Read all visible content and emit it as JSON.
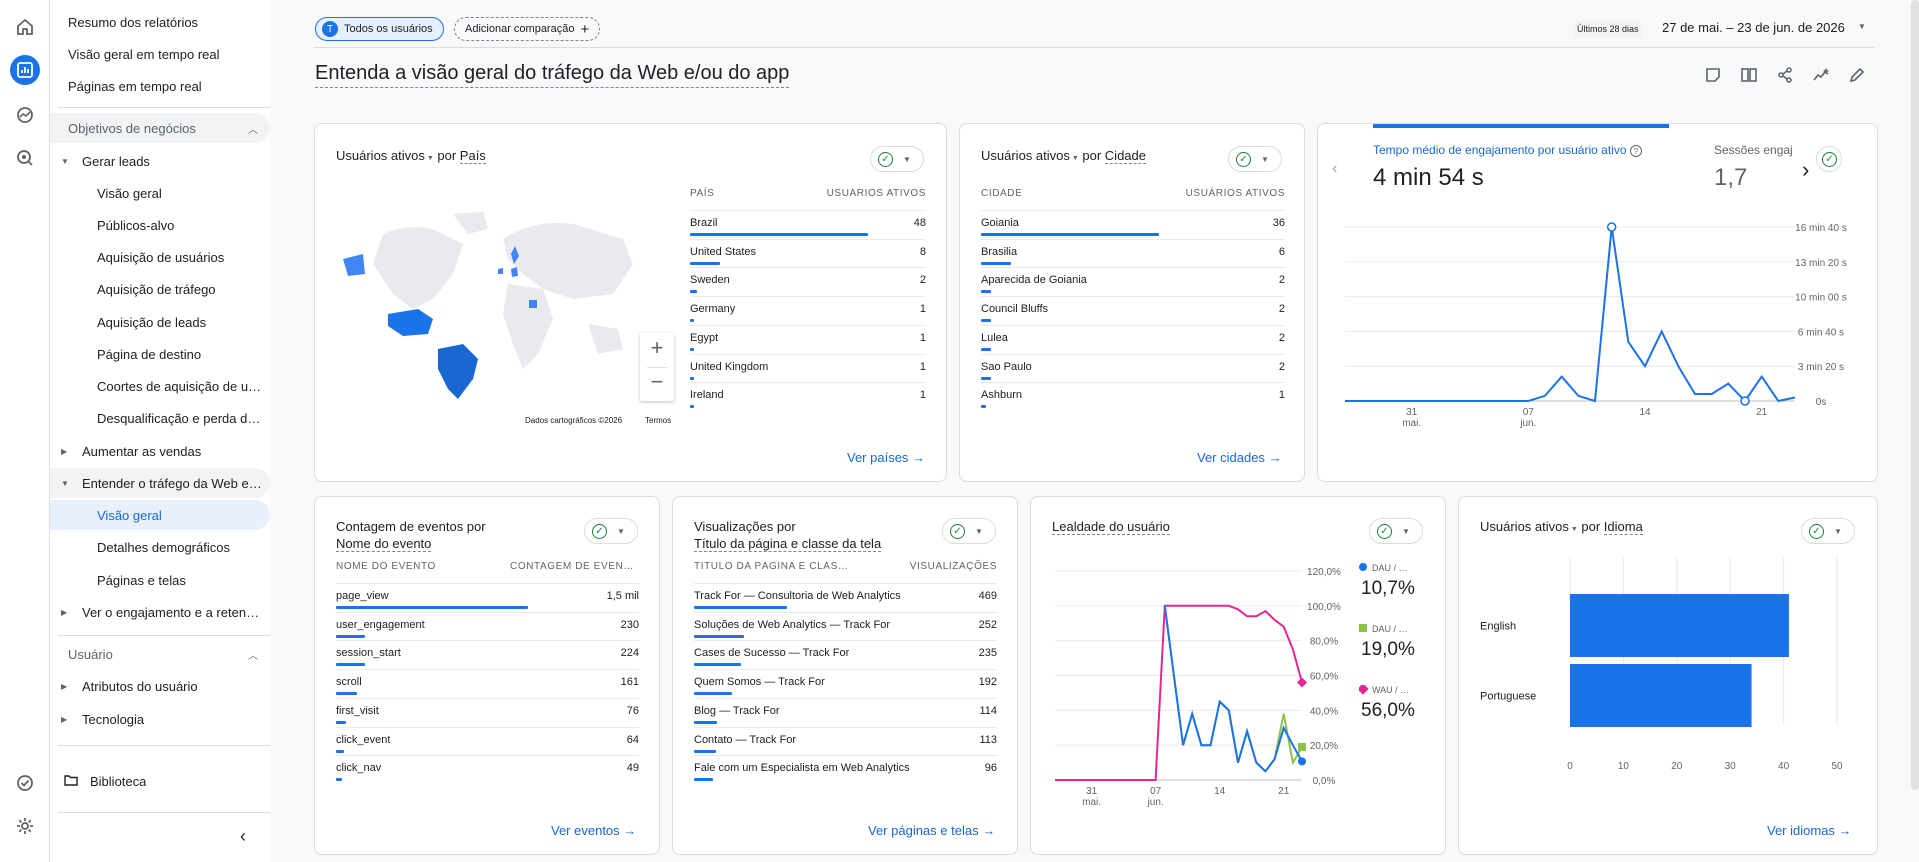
{
  "nav": {
    "top_items": [
      "Resumo dos relatórios",
      "Visão geral em tempo real",
      "Páginas em tempo real"
    ],
    "section1": "Objetivos de negócios",
    "gerar_leads": "Gerar leads",
    "gerar_leads_items": [
      "Visão geral",
      "Públicos-alvo",
      "Aquisição de usuários",
      "Aquisição de tráfego",
      "Aquisição de leads",
      "Página de destino",
      "Coortes de aquisição de usuários",
      "Desqualificação e perda de leads"
    ],
    "aumentar": "Aumentar as vendas",
    "entender": "Entender o tráfego da Web e/ou do app",
    "entender_items": [
      "Visão geral",
      "Detalhes demográficos",
      "Páginas e telas"
    ],
    "engajamento": "Ver o engajamento e a retenção",
    "section2": "Usuário",
    "usuario_items": [
      "Atributos do usuário",
      "Tecnologia"
    ],
    "biblioteca": "Biblioteca"
  },
  "header": {
    "segment_avatar": "T",
    "segment": "Todos os usuários",
    "add_comparison": "Adicionar comparação",
    "range_label": "Últimos 28 dias",
    "range": "27 de mai. – 23 de jun. de 2026",
    "page_title": "Entenda a visão geral do tráfego da Web e/ou do app"
  },
  "country_card": {
    "title_metric": "Usuários ativos",
    "title_by": "por",
    "title_dim": "País",
    "col1": "PAÍS",
    "col2": "USUÁRIOS ATIVOS",
    "rows": [
      {
        "name": "Brazil",
        "value": "48",
        "frac": 1.0
      },
      {
        "name": "United States",
        "value": "8",
        "frac": 0.167
      },
      {
        "name": "Sweden",
        "value": "2",
        "frac": 0.042
      },
      {
        "name": "Germany",
        "value": "1",
        "frac": 0.021
      },
      {
        "name": "Egypt",
        "value": "1",
        "frac": 0.021
      },
      {
        "name": "United Kingdom",
        "value": "1",
        "frac": 0.021
      },
      {
        "name": "Ireland",
        "value": "1",
        "frac": 0.021
      }
    ],
    "zoom_in": "+",
    "zoom_out": "−",
    "map_credit": "Dados cartográficos ©2026",
    "terms": "Termos",
    "footer": "Ver países"
  },
  "city_card": {
    "title_metric": "Usuários ativos",
    "title_by": "por",
    "title_dim": "Cidade",
    "col1": "CIDADE",
    "col2": "USUÁRIOS ATIVOS",
    "rows": [
      {
        "name": "Goiania",
        "value": "36",
        "frac": 1.0
      },
      {
        "name": "Brasilia",
        "value": "6",
        "frac": 0.167
      },
      {
        "name": "Aparecida de Goiania",
        "value": "2",
        "frac": 0.056
      },
      {
        "name": "Council Bluffs",
        "value": "2",
        "frac": 0.056
      },
      {
        "name": "Lulea",
        "value": "2",
        "frac": 0.056
      },
      {
        "name": "Sao Paulo",
        "value": "2",
        "frac": 0.056
      },
      {
        "name": "Ashburn",
        "value": "1",
        "frac": 0.028
      }
    ],
    "footer": "Ver cidades"
  },
  "engagement_card": {
    "metric1_label": "Tempo médio de engajamento por usuário ativo",
    "metric1_value": "4 min 54 s",
    "metric2_label": "Sessões engajadas por usuário ativo",
    "metric2_value": "1,7",
    "yticks": [
      "16 min 40 s",
      "13 min 20 s",
      "10 min 00 s",
      "6 min 40 s",
      "3 min 20 s",
      "0s"
    ],
    "xticks": [
      {
        "day": "31",
        "month": "mai."
      },
      {
        "day": "07",
        "month": "jun."
      },
      {
        "day": "14",
        "month": ""
      },
      {
        "day": "21",
        "month": ""
      }
    ]
  },
  "events_card": {
    "title_line1": "Contagem de eventos por",
    "title_line2": "Nome do evento",
    "col1": "NOME DO EVENTO",
    "col2": "CONTAGEM DE EVENTOS",
    "rows": [
      {
        "name": "page_view",
        "value": "1,5 mil",
        "frac": 1.0
      },
      {
        "name": "user_engagement",
        "value": "230",
        "frac": 0.153
      },
      {
        "name": "session_start",
        "value": "224",
        "frac": 0.149
      },
      {
        "name": "scroll",
        "value": "161",
        "frac": 0.107
      },
      {
        "name": "first_visit",
        "value": "76",
        "frac": 0.05
      },
      {
        "name": "click_event",
        "value": "64",
        "frac": 0.043
      },
      {
        "name": "click_nav",
        "value": "49",
        "frac": 0.033
      }
    ],
    "footer": "Ver eventos"
  },
  "views_card": {
    "title_line1": "Visualizações por",
    "title_line2": "Título da página e classe da tela",
    "col1": "TÍTULO DA PÁGINA E CLASSE DA TELA",
    "col2": "VISUALIZAÇÕES",
    "rows": [
      {
        "name": "Track For — Consultoria de Web Analytics",
        "value": "469",
        "frac": 1.0
      },
      {
        "name": "Soluções de Web Analytics — Track For",
        "value": "252",
        "frac": 0.537
      },
      {
        "name": "Cases de Sucesso — Track For",
        "value": "235",
        "frac": 0.501
      },
      {
        "name": "Quem Somos — Track For",
        "value": "192",
        "frac": 0.409
      },
      {
        "name": "Blog — Track For",
        "value": "114",
        "frac": 0.243
      },
      {
        "name": "Contato — Track For",
        "value": "113",
        "frac": 0.241
      },
      {
        "name": "Fale com um Especialista em Web Analytics",
        "value": "96",
        "frac": 0.205
      }
    ],
    "footer": "Ver páginas e telas"
  },
  "loyalty_card": {
    "title": "Lealdade do usuário",
    "yticks": [
      "120,0%",
      "100,0%",
      "80,0%",
      "60,0%",
      "40,0%",
      "20,0%",
      "0,0%"
    ],
    "xticks": [
      {
        "day": "31",
        "month": "mai."
      },
      {
        "day": "07",
        "month": "jun."
      },
      {
        "day": "14",
        "month": ""
      },
      {
        "day": "21",
        "month": ""
      }
    ],
    "legend": [
      {
        "label": "DAU / MAU",
        "value": "10,7%",
        "color": "#1a73e8"
      },
      {
        "label": "DAU / WAU",
        "value": "19,0%",
        "color": "#8bc34a"
      },
      {
        "label": "WAU / MAU",
        "value": "56,0%",
        "color": "#e52592"
      }
    ]
  },
  "language_card": {
    "title_metric": "Usuários ativos",
    "title_by": "por",
    "title_dim": "Idioma",
    "footer": "Ver idiomas"
  },
  "chart_data": [
    {
      "type": "line",
      "title": "Tempo médio de engajamento por usuário ativo",
      "x": [
        "27/05",
        "28/05",
        "29/05",
        "30/05",
        "31/05",
        "01/06",
        "02/06",
        "03/06",
        "04/06",
        "05/06",
        "06/06",
        "07/06",
        "08/06",
        "09/06",
        "10/06",
        "11/06",
        "12/06",
        "13/06",
        "14/06",
        "15/06",
        "16/06",
        "17/06",
        "18/06",
        "19/06",
        "20/06",
        "21/06",
        "22/06",
        "23/06"
      ],
      "series": [
        {
          "values": [
            0,
            0,
            0,
            0,
            0,
            0,
            0,
            0,
            0,
            0,
            0,
            0,
            30,
            140,
            30,
            0,
            1000,
            340,
            200,
            400,
            200,
            40,
            40,
            100,
            0,
            140,
            0,
            20
          ]
        }
      ],
      "ylabel_unit": "seconds",
      "ylim": [
        0,
        1000
      ],
      "ytick_labels": [
        "0s",
        "3 min 20 s",
        "6 min 40 s",
        "10 min 00 s",
        "13 min 20 s",
        "16 min 40 s"
      ]
    },
    {
      "type": "line",
      "title": "Lealdade do usuário",
      "x": [
        "27/05",
        "28/05",
        "29/05",
        "30/05",
        "31/05",
        "01/06",
        "02/06",
        "03/06",
        "04/06",
        "05/06",
        "06/06",
        "07/06",
        "08/06",
        "09/06",
        "10/06",
        "11/06",
        "12/06",
        "13/06",
        "14/06",
        "15/06",
        "16/06",
        "17/06",
        "18/06",
        "19/06",
        "20/06",
        "21/06",
        "22/06",
        "23/06"
      ],
      "series": [
        {
          "name": "WAU / MAU",
          "color": "#e52592",
          "values": [
            0,
            0,
            0,
            0,
            0,
            0,
            0,
            0,
            0,
            0,
            0,
            0,
            100,
            100,
            100,
            100,
            100,
            100,
            100,
            100,
            98,
            94,
            94,
            97,
            92,
            88,
            75,
            56
          ]
        },
        {
          "name": "DAU / WAU",
          "color": "#8bc34a",
          "values": [
            null,
            null,
            null,
            null,
            null,
            null,
            null,
            null,
            null,
            null,
            null,
            null,
            100,
            60,
            20,
            38,
            20,
            20,
            45,
            40,
            10,
            28,
            10,
            5,
            12,
            38,
            10,
            19
          ]
        },
        {
          "name": "DAU / MAU",
          "color": "#1a73e8",
          "values": [
            null,
            null,
            null,
            null,
            null,
            null,
            null,
            null,
            null,
            null,
            null,
            null,
            100,
            60,
            20,
            38,
            20,
            20,
            45,
            40,
            10,
            28,
            10,
            5,
            12,
            30,
            20,
            10.7
          ]
        }
      ],
      "ylim": [
        0,
        120
      ],
      "unit": "%"
    },
    {
      "type": "bar",
      "orientation": "horizontal",
      "title": "Usuários ativos por Idioma",
      "categories": [
        "English",
        "Portuguese"
      ],
      "values": [
        41,
        34
      ],
      "xlim": [
        0,
        50
      ],
      "xticks": [
        0,
        10,
        20,
        30,
        40,
        50
      ]
    }
  ]
}
